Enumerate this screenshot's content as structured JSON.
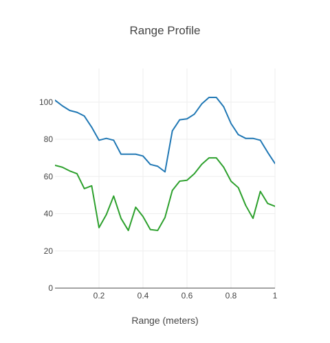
{
  "chart_data": {
    "type": "line",
    "title": "Range Profile",
    "xlabel": "Range (meters)",
    "ylabel": "",
    "xlim": [
      0,
      1
    ],
    "ylim": [
      0,
      118
    ],
    "grid": true,
    "legend": "none",
    "x_ticks": [
      {
        "value": 0.2,
        "label": "0.2"
      },
      {
        "value": 0.4,
        "label": "0.4"
      },
      {
        "value": 0.6,
        "label": "0.6"
      },
      {
        "value": 0.8,
        "label": "0.8"
      },
      {
        "value": 1.0,
        "label": "1"
      }
    ],
    "y_ticks": [
      {
        "value": 0,
        "label": "0"
      },
      {
        "value": 20,
        "label": "20"
      },
      {
        "value": 40,
        "label": "40"
      },
      {
        "value": 60,
        "label": "60"
      },
      {
        "value": 80,
        "label": "80"
      },
      {
        "value": 100,
        "label": "100"
      }
    ],
    "x": [
      0.0,
      0.0333,
      0.0667,
      0.1,
      0.1333,
      0.1667,
      0.2,
      0.2333,
      0.2667,
      0.3,
      0.3333,
      0.3667,
      0.4,
      0.4333,
      0.4667,
      0.5,
      0.5333,
      0.5667,
      0.6,
      0.6333,
      0.6667,
      0.7,
      0.7333,
      0.7667,
      0.8,
      0.8333,
      0.8667,
      0.9,
      0.9333,
      0.9667,
      1.0
    ],
    "series": [
      {
        "color": "#1f77b4",
        "values": [
          101,
          98,
          95.5,
          94.5,
          92.5,
          86.5,
          79.5,
          80.5,
          79.5,
          72,
          72,
          72,
          71,
          66.5,
          65.5,
          62.5,
          84.5,
          90.5,
          91,
          93.5,
          99,
          102.5,
          102.5,
          97.5,
          88.5,
          82.5,
          80.5,
          80.5,
          79.5,
          73,
          67
        ]
      },
      {
        "color": "#2ca02c",
        "values": [
          66,
          65,
          63,
          61.5,
          53.5,
          55,
          32.5,
          39.5,
          49.5,
          37.5,
          31,
          43.5,
          38.5,
          31.5,
          31,
          38,
          52.5,
          57.5,
          58,
          61.5,
          66.5,
          70,
          70,
          65,
          57.5,
          54,
          44.5,
          37.5,
          52,
          45.5,
          44
        ]
      }
    ]
  }
}
